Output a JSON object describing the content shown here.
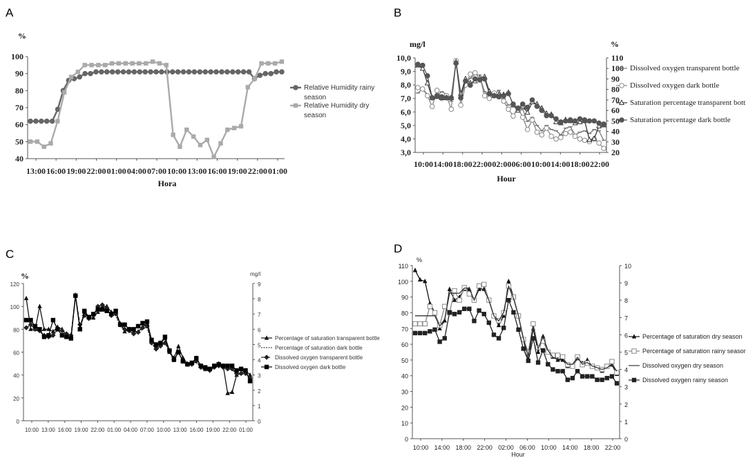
{
  "chart_data": [
    {
      "id": "A",
      "type": "line",
      "panel_label": "A",
      "ylabel": "%",
      "xlabel": "Hora",
      "ylim": [
        40,
        100
      ],
      "y_ticks": [
        "40",
        "50",
        "60",
        "70",
        "80",
        "90",
        "100"
      ],
      "x_tick_labels": [
        "13:00",
        "16:00",
        "19:00",
        "22:00",
        "01:00",
        "04:00",
        "07:00",
        "10:00",
        "13:00",
        "16:00",
        "19:00",
        "22:00",
        "01:00"
      ],
      "legend": "right",
      "grid": false,
      "series": [
        {
          "name": "Relative Humidity rainy season",
          "color": "#666666",
          "marker": "circle",
          "values": [
            62,
            62,
            62,
            62,
            62,
            69,
            80,
            86,
            87,
            88,
            90,
            90,
            91,
            91,
            91,
            91,
            91,
            91,
            91,
            91,
            91,
            91,
            91,
            91,
            91,
            91,
            91,
            91,
            91,
            91,
            91,
            91,
            91,
            91,
            91,
            91,
            91,
            91,
            91,
            91,
            91,
            87,
            89,
            90,
            90,
            91,
            91
          ]
        },
        {
          "name": "Relative Humidity dry season",
          "color": "#aaaaaa",
          "marker": "square",
          "values": [
            50,
            50,
            47,
            49,
            62,
            79,
            88,
            91,
            95,
            95,
            95,
            95,
            96,
            96,
            96,
            96,
            96,
            96,
            97,
            96,
            95,
            54,
            47,
            57,
            53,
            48,
            51,
            41,
            49,
            57,
            58,
            59,
            82,
            87,
            96,
            96,
            96,
            97
          ]
        }
      ]
    },
    {
      "id": "B",
      "type": "line",
      "panel_label": "B",
      "ylabel_left": "mg/l",
      "ylabel_right": "%",
      "xlabel": "Hour",
      "ylim_left": [
        3.0,
        10.0
      ],
      "ylim_right": [
        20,
        110
      ],
      "y_ticks_left": [
        "3,0",
        "4,0",
        "5,0",
        "6,0",
        "7,0",
        "8,0",
        "9,0",
        "10,0"
      ],
      "y_ticks_right": [
        "20",
        "30",
        "40",
        "50",
        "60",
        "70",
        "80",
        "90",
        "100",
        "110"
      ],
      "x_tick_labels": [
        "10:00",
        "14:00",
        "18:00",
        "22:00",
        "02:00",
        "06:00",
        "10:00",
        "14:00",
        "18:00",
        "22:00"
      ],
      "legend": "right",
      "grid": false,
      "series": [
        {
          "name": "Dissolved oxygen transparent bottle",
          "color": "#777777",
          "marker": "dash",
          "axis": "left",
          "values": [
            7.4,
            7.7,
            7.3,
            7.0,
            7.2,
            7.5,
            7.3,
            6.8,
            9.8,
            7.2,
            8.1,
            8.5,
            8.8,
            8.6,
            7.5,
            7.2,
            7.3,
            7.6,
            7.0,
            6.5,
            6.6,
            6.0,
            6.2,
            5.3,
            5.6,
            5.0,
            4.6,
            5.0,
            4.7,
            4.6,
            4.3,
            4.8,
            4.9,
            4.3,
            4.5,
            4.6,
            4.4,
            4.7,
            4.6,
            3.9
          ]
        },
        {
          "name": "Dissolved oxygen dark bottle",
          "color": "#888888",
          "marker": "open-circle",
          "axis": "left",
          "values": [
            7.8,
            7.7,
            7.2,
            6.4,
            7.6,
            7.0,
            7.2,
            6.2,
            9.8,
            6.5,
            8.0,
            8.8,
            8.9,
            8.6,
            7.2,
            7.0,
            7.4,
            7.2,
            6.8,
            6.2,
            5.7,
            6.3,
            5.6,
            4.7,
            5.4,
            4.5,
            4.3,
            4.8,
            4.2,
            4.0,
            4.1,
            4.4,
            4.5,
            4.2,
            4.0,
            3.9,
            3.8,
            4.0,
            3.7,
            3.3
          ]
        },
        {
          "name": "Saturation percentage transparent bottle",
          "color": "#333333",
          "marker": "open-triangle",
          "axis": "right",
          "values": [
            103,
            100,
            86,
            72,
            73,
            72,
            72,
            72,
            106,
            76,
            90,
            86,
            88,
            91,
            92,
            78,
            74,
            75,
            75,
            77,
            65,
            60,
            64,
            58,
            68,
            66,
            62,
            57,
            56,
            49,
            48,
            51,
            50,
            48,
            49,
            50,
            32,
            33,
            45,
            46
          ]
        },
        {
          "name": "Saturation percentage dark bottle",
          "color": "#555555",
          "marker": "filled-circle",
          "axis": "right",
          "values": [
            104,
            103,
            93,
            72,
            74,
            73,
            72,
            72,
            105,
            72,
            88,
            84,
            90,
            89,
            90,
            76,
            74,
            73,
            74,
            76,
            66,
            62,
            66,
            63,
            70,
            64,
            60,
            55,
            55,
            52,
            49,
            50,
            51,
            50,
            52,
            51,
            50,
            50,
            48,
            47
          ]
        }
      ]
    },
    {
      "id": "C",
      "type": "line",
      "panel_label": "C",
      "ylabel_left": "%",
      "ylabel_right": "mg/l",
      "ylim_left": [
        0,
        120
      ],
      "ylim_right": [
        0,
        9
      ],
      "y_ticks_left": [
        "0",
        "20",
        "40",
        "60",
        "80",
        "100",
        "120"
      ],
      "y_ticks_right": [
        "0",
        "1",
        "2",
        "3",
        "4",
        "5",
        "6",
        "7",
        "8",
        "9"
      ],
      "x_tick_labels": [
        "10:00",
        "13:00",
        "16:00",
        "19:00",
        "22:00",
        "01:00",
        "04:00",
        "07:00",
        "10:00",
        "13:00",
        "16:00",
        "19:00",
        "22:00",
        "01:00"
      ],
      "legend": "right",
      "grid": false,
      "series": [
        {
          "name": "Percentage of saturation  transparent bottle",
          "color": "#111111",
          "marker": "triangle",
          "axis": "left",
          "values": [
            107,
            80,
            80,
            100,
            80,
            80,
            78,
            82,
            80,
            75,
            72,
            110,
            80,
            95,
            90,
            90,
            95,
            100,
            100,
            95,
            95,
            85,
            78,
            80,
            78,
            78,
            82,
            85,
            70,
            65,
            68,
            72,
            60,
            55,
            65,
            55,
            50,
            50,
            55,
            48,
            45,
            45,
            48,
            50,
            48,
            24,
            25,
            40,
            42,
            44,
            40
          ]
        },
        {
          "name": "Percentage of saturation  dark bottle",
          "color": "#444444",
          "marker": "dotted",
          "axis": "left",
          "values": [
            87,
            86,
            82,
            78,
            74,
            72,
            74,
            80,
            78,
            76,
            74,
            108,
            82,
            92,
            88,
            92,
            95,
            96,
            98,
            92,
            92,
            82,
            80,
            78,
            76,
            77,
            80,
            82,
            68,
            62,
            64,
            68,
            60,
            52,
            60,
            52,
            48,
            48,
            52,
            46,
            44,
            44,
            46,
            48,
            46,
            45,
            45,
            40,
            41,
            42,
            38
          ]
        },
        {
          "name": "Dissolved oxygen transparent bottle",
          "color": "#222222",
          "marker": "diamond",
          "axis": "right",
          "values": [
            6.1,
            6.3,
            6.0,
            5.9,
            5.6,
            5.5,
            5.6,
            6.0,
            5.9,
            5.7,
            5.6,
            8.2,
            6.3,
            6.9,
            6.7,
            6.9,
            7.5,
            7.6,
            7.4,
            6.9,
            7.0,
            6.3,
            6.0,
            5.9,
            5.7,
            5.8,
            6.1,
            6.2,
            5.1,
            4.7,
            4.9,
            5.1,
            4.6,
            4.0,
            4.5,
            3.9,
            3.7,
            3.7,
            3.9,
            3.5,
            3.4,
            3.3,
            3.5,
            3.6,
            3.5,
            3.4,
            3.4,
            3.1,
            3.1,
            3.1,
            2.8
          ]
        },
        {
          "name": "Dissolved oxygen dark bottle",
          "color": "#000000",
          "marker": "square",
          "axis": "right",
          "values": [
            6.6,
            6.6,
            6.2,
            6.0,
            5.5,
            5.6,
            6.6,
            6.0,
            5.6,
            5.5,
            5.4,
            8.2,
            6.0,
            7.2,
            6.8,
            7.0,
            7.3,
            7.3,
            7.2,
            7.0,
            7.2,
            6.3,
            6.3,
            6.0,
            6.0,
            6.2,
            6.4,
            6.5,
            5.3,
            5.0,
            5.1,
            5.5,
            4.6,
            4.0,
            4.5,
            3.9,
            3.7,
            3.8,
            4.1,
            3.6,
            3.5,
            3.4,
            3.6,
            3.7,
            3.6,
            3.6,
            3.6,
            3.3,
            3.4,
            3.3,
            2.6
          ]
        }
      ]
    },
    {
      "id": "D",
      "type": "line",
      "panel_label": "D",
      "ylabel_left": "%",
      "xlabel": "Hour",
      "ylim_left": [
        0,
        110
      ],
      "ylim_right": [
        0,
        10
      ],
      "y_ticks_left": [
        "0",
        "10",
        "20",
        "30",
        "40",
        "50",
        "60",
        "70",
        "80",
        "90",
        "100",
        "110"
      ],
      "y_ticks_right": [
        "0",
        "1",
        "2",
        "3",
        "4",
        "5",
        "6",
        "7",
        "8",
        "9",
        "10"
      ],
      "x_tick_labels": [
        "10:00",
        "14:00",
        "18:00",
        "22:00",
        "02:00",
        "06:00",
        "10:00",
        "14:00",
        "18:00",
        "22:00"
      ],
      "legend": "right",
      "grid": false,
      "series": [
        {
          "name": "Percentage of saturation dry season",
          "color": "#111111",
          "marker": "triangle",
          "axis": "left",
          "values": [
            107,
            101,
            100,
            86,
            80,
            70,
            75,
            95,
            88,
            90,
            95,
            95,
            88,
            95,
            95,
            88,
            78,
            72,
            78,
            100,
            90,
            78,
            63,
            50,
            70,
            55,
            65,
            55,
            52,
            50,
            50,
            46,
            46,
            51,
            48,
            50,
            46,
            45,
            43,
            46,
            47,
            41
          ]
        },
        {
          "name": "Percentage of saturation rainy season",
          "color": "#888888",
          "marker": "open-square",
          "axis": "left",
          "values": [
            73,
            73,
            73,
            84,
            80,
            72,
            84,
            80,
            94,
            88,
            96,
            92,
            88,
            97,
            98,
            88,
            78,
            75,
            80,
            97,
            90,
            78,
            63,
            55,
            73,
            58,
            62,
            55,
            53,
            53,
            52,
            47,
            46,
            52,
            47,
            48,
            46,
            45,
            44,
            46,
            49,
            42
          ]
        },
        {
          "name": "Dissolved oxygen dry season",
          "color": "#333333",
          "marker": "line",
          "axis": "right",
          "values": [
            7.1,
            7.1,
            7.1,
            7.1,
            7.1,
            6.5,
            6.9,
            8.4,
            8.4,
            8.4,
            8.7,
            8.7,
            8.0,
            8.7,
            8.6,
            8.0,
            7.1,
            6.8,
            7.3,
            8.8,
            8.1,
            7.1,
            5.8,
            4.8,
            6.5,
            5.2,
            5.9,
            5.1,
            4.7,
            4.6,
            4.6,
            4.3,
            4.3,
            4.7,
            4.3,
            4.4,
            4.2,
            4.1,
            4.0,
            4.1,
            4.3,
            3.9
          ]
        },
        {
          "name": "Dissolved oxygen rainy season",
          "color": "#222222",
          "marker": "filled-square",
          "axis": "right",
          "values": [
            6.1,
            6.1,
            6.1,
            6.2,
            6.3,
            5.6,
            5.8,
            7.3,
            7.2,
            7.3,
            7.5,
            7.5,
            6.8,
            7.4,
            7.2,
            6.7,
            6.0,
            5.8,
            6.4,
            8.0,
            7.3,
            6.3,
            5.2,
            4.5,
            5.8,
            4.4,
            5.1,
            4.3,
            4.0,
            3.9,
            3.9,
            3.4,
            3.5,
            3.9,
            3.6,
            3.6,
            3.6,
            3.4,
            3.4,
            3.5,
            3.6,
            3.2
          ]
        }
      ]
    }
  ]
}
